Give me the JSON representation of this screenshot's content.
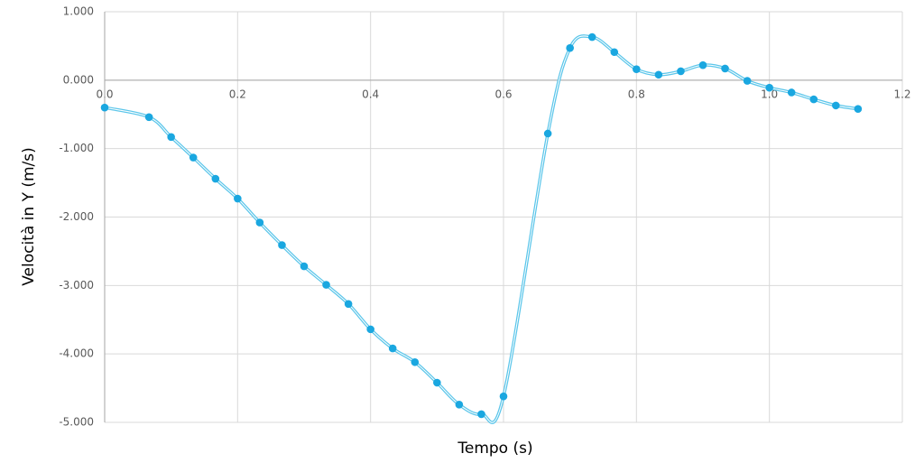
{
  "chart_data": {
    "type": "scatter",
    "line": "smooth",
    "x_label": "Tempo (s)",
    "y_label": "Velocità in Y (m/s)",
    "series": [
      {
        "name": "Velocità in Y",
        "color": "#1aa7e0",
        "line_color": "#5cc6ea",
        "x": [
          0,
          0.0667,
          0.1,
          0.1333,
          0.1667,
          0.2,
          0.2333,
          0.2667,
          0.3,
          0.3333,
          0.3667,
          0.4,
          0.4333,
          0.4667,
          0.5,
          0.5333,
          0.5667,
          0.6,
          0.6667,
          0.7,
          0.7333,
          0.7667,
          0.8,
          0.8333,
          0.8667,
          0.9,
          0.9333,
          0.9667,
          1.0,
          1.0333,
          1.0667,
          1.1,
          1.1333
        ],
        "values": [
          -0.4,
          -0.54,
          -0.83,
          -1.13,
          -1.44,
          -1.73,
          -2.08,
          -2.41,
          -2.72,
          -2.99,
          -3.27,
          -3.64,
          -3.92,
          -4.12,
          -4.42,
          -4.74,
          -4.88,
          -4.62,
          -0.78,
          0.47,
          0.63,
          0.41,
          0.16,
          0.08,
          0.13,
          0.22,
          0.17,
          -0.01,
          -0.11,
          -0.18,
          -0.28,
          -0.37,
          -0.42
        ]
      }
    ],
    "xlim": [
      0,
      1.2
    ],
    "xticks": [
      {
        "value": 0,
        "label": "0.0"
      },
      0.2,
      0.4,
      0.6,
      0.8,
      {
        "value": 1,
        "label": "1.0"
      },
      1.2
    ],
    "ylim": [
      -5,
      1
    ],
    "yticks": [
      {
        "value": -5,
        "label": "-5.000"
      },
      {
        "value": -4,
        "label": "-4.000"
      },
      {
        "value": -3,
        "label": "-3.000"
      },
      {
        "value": -2,
        "label": "-2.000"
      },
      {
        "value": -1,
        "label": "-1.000"
      },
      {
        "value": 0,
        "label": "0.000"
      },
      {
        "value": 1,
        "label": "1.000"
      }
    ],
    "grid": true
  }
}
